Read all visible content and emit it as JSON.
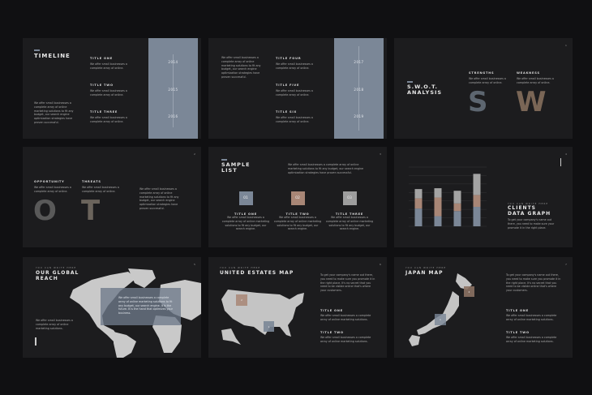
{
  "colors": {
    "background": "#101012",
    "slide": "#1c1c1e",
    "blue": "#7b8797",
    "tan": "#a88676",
    "grey": "#a3a3a3"
  },
  "slides": [
    {
      "title": "TIMELINE",
      "paragraph": "We offer small businesses a complete array of online marketing solutions to fit any budget, our search engine optimization strategies have proven successful.",
      "items": [
        {
          "title": "TITLE ONE",
          "text": "We offer small businesses a complete array of online."
        },
        {
          "title": "TITLE TWO",
          "text": "We offer small businesses a complete array of online."
        },
        {
          "title": "TITLE THREE",
          "text": "We offer small businesses a complete array of online."
        }
      ],
      "years": [
        "2014",
        "2015",
        "2016"
      ]
    },
    {
      "paragraph": "We offer small businesses a complete array of online marketing solutions to fit any budget, our search engine optimization strategies have proven successful.",
      "items": [
        {
          "title": "TITLE FOUR",
          "text": "We offer small businesses a complete array of online."
        },
        {
          "title": "TITLE FIVE",
          "text": "We offer small businesses a complete array of online."
        },
        {
          "title": "TITLE SIX",
          "text": "We offer small businesses a complete array of online."
        }
      ],
      "years": [
        "2017",
        "2018",
        "2019"
      ]
    },
    {
      "title_line1": "S.W.O.T.",
      "title_line2": "ANALYSIS",
      "page": "1",
      "items": [
        {
          "title": "STRENGTHS",
          "text": "We offer small businesses a complete array of online.",
          "letter": "S"
        },
        {
          "title": "WEAKNESS",
          "text": "We offer small businesses a complete array of online.",
          "letter": "W"
        }
      ]
    },
    {
      "page": "2",
      "paragraph": "We offer small businesses a complete array of online marketing solutions to fit any budget, our search engine optimization strategies have proven successful.",
      "items": [
        {
          "title": "OPPORTUNITY",
          "text": "We offer small businesses a complete array of online.",
          "letter": "O"
        },
        {
          "title": "THREATS",
          "text": "We offer small businesses a complete array of online.",
          "letter": "T"
        }
      ]
    },
    {
      "title_line1": "SAMPLE",
      "title_line2": "LIST",
      "page": "3",
      "paragraph": "We offer small businesses a complete array of online marketing solutions to fit any budget, our search engine optimization strategies have proven successful.",
      "items": [
        {
          "num": "01",
          "title": "TITLE ONE",
          "text": "We offer small businesses a complete array of online marketing solutions to fit any budget, our search engine."
        },
        {
          "num": "02",
          "title": "TITLE TWO",
          "text": "We offer small businesses a complete array of online marketing solutions to fit any budget, our search engine."
        },
        {
          "num": "03",
          "title": "TITLE THREE",
          "text": "We offer small businesses a complete array of online marketing solutions to fit any budget, our search engine."
        }
      ]
    },
    {
      "caption": "YOU CAN WRITE HERE",
      "title_line1": "CLIENTS",
      "title_line2": "DATA GRAPH",
      "page": "4",
      "paragraph": "To get your company's name out there, you need to make sure your promote it in the right place."
    },
    {
      "caption": "YOU CAN WRITE HERE",
      "title_line1": "OUR GLOBAL",
      "title_line2": "REACH",
      "page": "5",
      "paragraph": "We offer small businesses a complete array of online marketing solutions.",
      "overlay_text": "We offer small businesses a complete array of online marketing solutions to fit any budget, our search engine. It is the future. It is the hand that optimizes your business."
    },
    {
      "caption": "YOU CAN WRITE HERE",
      "title": "UNITED ESTATES MAP",
      "page": "6",
      "paragraph": "To get your company's name out there, you need to make sure you promote it in the right place. It's no secret that you need to be visible online that's where your customers.",
      "markers": [
        "1",
        "2"
      ],
      "items": [
        {
          "title": "TITLE ONE",
          "text": "We offer small businesses a complete array of online marketing solutions."
        },
        {
          "title": "TITLE TWO",
          "text": "We offer small businesses a complete array of online marketing solutions."
        }
      ]
    },
    {
      "caption": "YOU CAN WRITE HERE",
      "title": "JAPAN MAP",
      "page": "7",
      "paragraph": "To get your company's name out there, you need to make sure you promote it in the right place. It's no secret that you need to be visible online that's where your customers.",
      "markers": [
        "1",
        "2"
      ],
      "items": [
        {
          "title": "TITLE ONE",
          "text": "We offer small businesses a complete array of online marketing solutions."
        },
        {
          "title": "TITLE TWO",
          "text": "We offer small businesses a complete array of online marketing solutions."
        }
      ]
    }
  ],
  "chart_data": {
    "type": "bar",
    "stacked": true,
    "ylim": [
      0,
      7
    ],
    "grid": true,
    "series": [
      {
        "color": "#7b8797",
        "values": [
          2.1,
          1.2,
          1.8,
          2.3
        ]
      },
      {
        "color": "#a88676",
        "values": [
          1.2,
          2.2,
          0.9,
          1.4
        ]
      },
      {
        "color": "#a3a3a3",
        "values": [
          1.1,
          1.1,
          1.5,
          2.5
        ]
      }
    ]
  }
}
